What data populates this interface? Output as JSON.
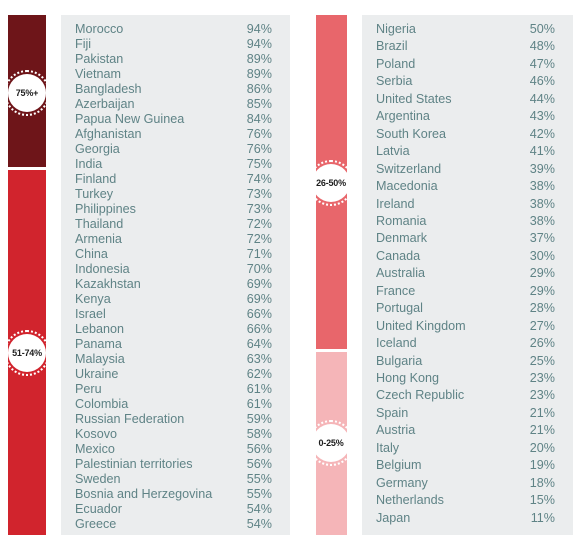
{
  "chart_data": {
    "type": "table",
    "columns": [
      {
        "groups": [
          {
            "label": "75%+",
            "color": "#6e1519",
            "count": 10
          },
          {
            "label": "51-74%",
            "color": "#d1242d",
            "count": 24
          }
        ],
        "rows": [
          {
            "country": "Morocco",
            "value": "94%"
          },
          {
            "country": "Fiji",
            "value": "94%"
          },
          {
            "country": "Pakistan",
            "value": "89%"
          },
          {
            "country": "Vietnam",
            "value": "89%"
          },
          {
            "country": "Bangladesh",
            "value": "86%"
          },
          {
            "country": "Azerbaijan",
            "value": "85%"
          },
          {
            "country": "Papua New Guinea",
            "value": "84%"
          },
          {
            "country": "Afghanistan",
            "value": "76%"
          },
          {
            "country": "Georgia",
            "value": "76%"
          },
          {
            "country": "India",
            "value": "75%"
          },
          {
            "country": "Finland",
            "value": "74%"
          },
          {
            "country": "Turkey",
            "value": "73%"
          },
          {
            "country": "Philippines",
            "value": "73%"
          },
          {
            "country": "Thailand",
            "value": "72%"
          },
          {
            "country": "Armenia",
            "value": "72%"
          },
          {
            "country": "China",
            "value": "71%"
          },
          {
            "country": "Indonesia",
            "value": "70%"
          },
          {
            "country": "Kazakhstan",
            "value": "69%"
          },
          {
            "country": "Kenya",
            "value": "69%"
          },
          {
            "country": "Israel",
            "value": "66%"
          },
          {
            "country": "Lebanon",
            "value": "66%"
          },
          {
            "country": "Panama",
            "value": "64%"
          },
          {
            "country": "Malaysia",
            "value": "63%"
          },
          {
            "country": "Ukraine",
            "value": "62%"
          },
          {
            "country": "Peru",
            "value": "61%"
          },
          {
            "country": "Colombia",
            "value": "61%"
          },
          {
            "country": "Russian Federation",
            "value": "59%"
          },
          {
            "country": "Kosovo",
            "value": "58%"
          },
          {
            "country": "Mexico",
            "value": "56%"
          },
          {
            "country": "Palestinian territories",
            "value": "56%"
          },
          {
            "country": "Sweden",
            "value": "55%"
          },
          {
            "country": "Bosnia and Herzegovina",
            "value": "55%"
          },
          {
            "country": "Ecuador",
            "value": "54%"
          },
          {
            "country": "Greece",
            "value": "54%"
          }
        ]
      },
      {
        "groups": [
          {
            "label": "26-50%",
            "color": "#e8666b",
            "count": 19
          },
          {
            "label": "0-25%",
            "color": "#f5b5b8",
            "count": 10
          }
        ],
        "rows": [
          {
            "country": "Nigeria",
            "value": "50%"
          },
          {
            "country": "Brazil",
            "value": "48%"
          },
          {
            "country": "Poland",
            "value": "47%"
          },
          {
            "country": "Serbia",
            "value": "46%"
          },
          {
            "country": "United States",
            "value": "44%"
          },
          {
            "country": "Argentina",
            "value": "43%"
          },
          {
            "country": "South Korea",
            "value": "42%"
          },
          {
            "country": "Latvia",
            "value": "41%"
          },
          {
            "country": "Switzerland",
            "value": "39%"
          },
          {
            "country": "Macedonia",
            "value": "38%"
          },
          {
            "country": "Ireland",
            "value": "38%"
          },
          {
            "country": "Romania",
            "value": "38%"
          },
          {
            "country": "Denmark",
            "value": "37%"
          },
          {
            "country": "Canada",
            "value": "30%"
          },
          {
            "country": "Australia",
            "value": "29%"
          },
          {
            "country": "France",
            "value": "29%"
          },
          {
            "country": "Portugal",
            "value": "28%"
          },
          {
            "country": "United Kingdom",
            "value": "27%"
          },
          {
            "country": "Iceland",
            "value": "26%"
          },
          {
            "country": "Bulgaria",
            "value": "25%"
          },
          {
            "country": "Hong Kong",
            "value": "23%"
          },
          {
            "country": "Czech Republic",
            "value": "23%"
          },
          {
            "country": "Spain",
            "value": "21%"
          },
          {
            "country": "Austria",
            "value": "21%"
          },
          {
            "country": "Italy",
            "value": "20%"
          },
          {
            "country": "Belgium",
            "value": "19%"
          },
          {
            "country": "Germany",
            "value": "18%"
          },
          {
            "country": "Netherlands",
            "value": "15%"
          },
          {
            "country": "Japan",
            "value": "11%"
          }
        ]
      }
    ]
  }
}
